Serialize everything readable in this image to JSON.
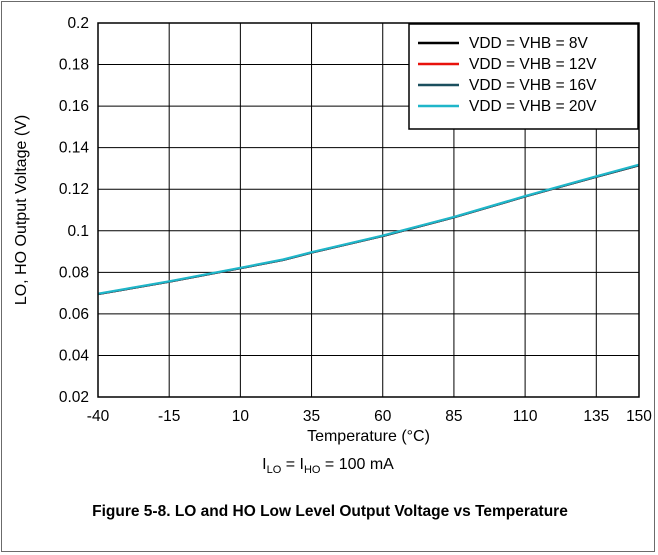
{
  "chart_data": {
    "type": "line",
    "title": "",
    "xlabel": "Temperature (°C)",
    "ylabel": "LO, HO Output Voltage (V)",
    "xlim": [
      -40,
      150
    ],
    "ylim": [
      0.02,
      0.2
    ],
    "x_ticks": [
      -40,
      -15,
      10,
      35,
      60,
      85,
      110,
      135,
      150
    ],
    "x_tick_labels": [
      "-40",
      "-15",
      "10",
      "35",
      "60",
      "85",
      "110",
      "135",
      "150"
    ],
    "y_ticks": [
      0.02,
      0.04,
      0.06,
      0.08,
      0.1,
      0.12,
      0.14,
      0.16,
      0.18,
      0.2
    ],
    "y_tick_labels": [
      "0.02",
      "0.04",
      "0.06",
      "0.08",
      "0.1",
      "0.12",
      "0.14",
      "0.16",
      "0.18",
      "0.2"
    ],
    "grid": true,
    "legend_position": "top-right",
    "x": [
      -40,
      -15,
      10,
      25,
      35,
      60,
      85,
      110,
      135,
      150
    ],
    "series": [
      {
        "name": "VDD = VHB = 8V",
        "color": "#000000",
        "values": [
          0.0695,
          0.0755,
          0.082,
          0.086,
          0.0895,
          0.0975,
          0.1065,
          0.1165,
          0.126,
          0.1315
        ]
      },
      {
        "name": "VDD = VHB = 12V",
        "color": "#e8120c",
        "values": [
          0.0695,
          0.0755,
          0.082,
          0.086,
          0.0895,
          0.0975,
          0.1065,
          0.1165,
          0.126,
          0.1315
        ]
      },
      {
        "name": "VDD = VHB = 16V",
        "color": "#1b4f5e",
        "values": [
          0.0695,
          0.0755,
          0.082,
          0.086,
          0.0895,
          0.0975,
          0.1065,
          0.1165,
          0.126,
          0.1315
        ]
      },
      {
        "name": "VDD = VHB = 20V",
        "color": "#1fb6c9",
        "values": [
          0.0697,
          0.0757,
          0.0822,
          0.0862,
          0.0897,
          0.0977,
          0.1067,
          0.1167,
          0.1262,
          0.1318
        ]
      }
    ]
  },
  "condition": {
    "i1": "I",
    "sub1": "LO",
    "eq": " = ",
    "i2": "I",
    "sub2": "HO",
    "rest": " = 100 mA"
  },
  "caption": "Figure 5-8. LO and HO Low Level Output Voltage vs Temperature"
}
